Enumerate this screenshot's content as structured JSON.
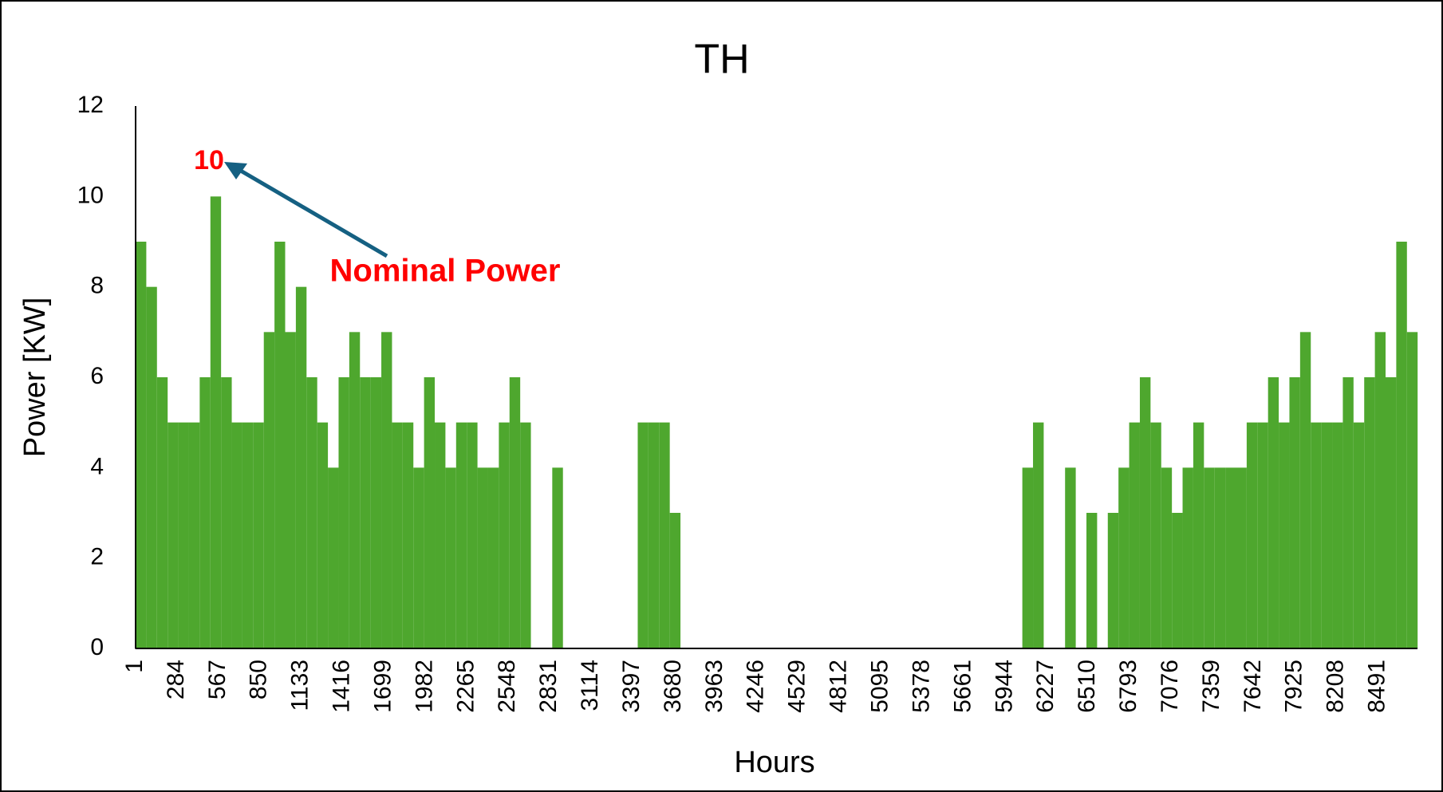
{
  "chart_data": {
    "type": "bar",
    "title": "TH",
    "x_label": "Hours",
    "y_label": "Power [KW]",
    "x": [
      1,
      74,
      147,
      220,
      293,
      366,
      439,
      512,
      585,
      658,
      731,
      804,
      877,
      950,
      1023,
      1096,
      1169,
      1242,
      1315,
      1388,
      1461,
      1534,
      1607,
      1680,
      1753,
      1826,
      1899,
      1972,
      2045,
      2118,
      2191,
      2264,
      2337,
      2410,
      2483,
      2556,
      2629,
      2702,
      2775,
      2848,
      2921,
      2994,
      3067,
      3140,
      3213,
      3286,
      3359,
      3432,
      3505,
      3578,
      3651,
      3724,
      3797,
      3870,
      3943,
      4016,
      4089,
      4162,
      4235,
      4308,
      4381,
      4454,
      4527,
      4600,
      4673,
      4746,
      4819,
      4892,
      4965,
      5038,
      5111,
      5184,
      5257,
      5330,
      5403,
      5476,
      5549,
      5622,
      5695,
      5768,
      5841,
      5914,
      5987,
      6060,
      6133,
      6206,
      6279,
      6352,
      6425,
      6498,
      6571,
      6644,
      6717,
      6790,
      6863,
      6936,
      7009,
      7082,
      7155,
      7228,
      7301,
      7374,
      7447,
      7520,
      7593,
      7666,
      7739,
      7812,
      7885,
      7958,
      8031,
      8104,
      8177,
      8250,
      8323,
      8396,
      8469,
      8542,
      8615,
      8688
    ],
    "values": [
      9,
      8,
      6,
      5,
      5,
      5,
      6,
      10,
      6,
      5,
      5,
      5,
      7,
      9,
      7,
      8,
      6,
      5,
      4,
      6,
      7,
      6,
      6,
      7,
      5,
      5,
      4,
      6,
      5,
      4,
      5,
      5,
      4,
      4,
      5,
      6,
      5,
      0,
      0,
      4,
      0,
      0,
      0,
      0,
      0,
      0,
      0,
      5,
      5,
      5,
      3,
      0,
      0,
      0,
      0,
      0,
      0,
      0,
      0,
      0,
      0,
      0,
      0,
      0,
      0,
      0,
      0,
      0,
      0,
      0,
      0,
      0,
      0,
      0,
      0,
      0,
      0,
      0,
      0,
      0,
      0,
      0,
      0,
      4,
      5,
      0,
      0,
      4,
      0,
      3,
      0,
      3,
      4,
      5,
      6,
      5,
      4,
      3,
      4,
      5,
      4,
      4,
      4,
      4,
      5,
      5,
      6,
      5,
      6,
      7,
      5,
      5,
      5,
      6,
      5,
      6,
      7,
      6,
      9,
      7
    ],
    "bar_width": 73,
    "color": "#4ea72e",
    "xlim": [
      1,
      8760
    ],
    "xticks": [
      1,
      284,
      567,
      850,
      1133,
      1416,
      1699,
      1982,
      2265,
      2548,
      2831,
      3114,
      3397,
      3680,
      3963,
      4246,
      4529,
      4812,
      5095,
      5378,
      5661,
      5944,
      6227,
      6510,
      6793,
      7076,
      7359,
      7642,
      7925,
      8208,
      8491
    ],
    "ylim": [
      0,
      12
    ],
    "yticks": [
      0,
      2,
      4,
      6,
      8,
      10,
      12
    ],
    "grid": false,
    "annotations": [
      "10",
      "Nominal Power"
    ],
    "annotation_color": "#ff0000"
  }
}
